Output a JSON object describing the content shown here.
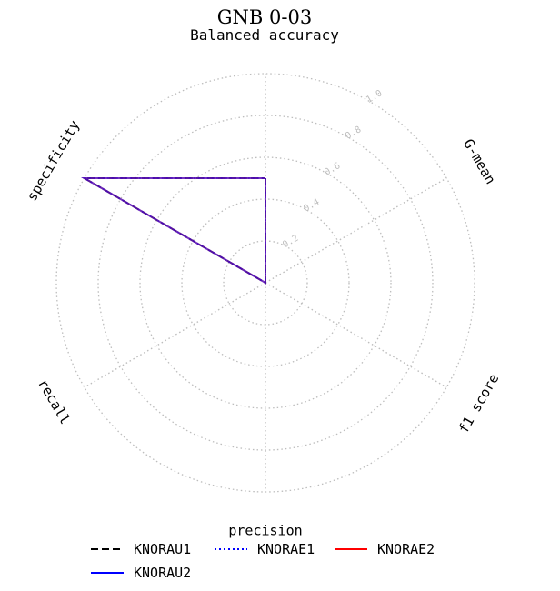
{
  "chart_data": {
    "type": "radar",
    "title": "GNB 0-03",
    "subtitle": "Balanced accuracy",
    "axes": [
      "Balanced accuracy",
      "G-mean",
      "f1 score",
      "precision",
      "recall",
      "specificity"
    ],
    "radial_ticks": [
      "0.2",
      "0.4",
      "0.6",
      "0.8",
      "1.0"
    ],
    "rlim": [
      0,
      1
    ],
    "grid": true,
    "legend_position": "bottom",
    "series": [
      {
        "name": "KNORAU1",
        "color": "#000000",
        "style": "dashed",
        "values": [
          0.5,
          0.0,
          0.0,
          0.0,
          0.0,
          1.0
        ]
      },
      {
        "name": "KNORAE1",
        "color": "#0000ff",
        "style": "dotted",
        "values": [
          0.5,
          0.0,
          0.0,
          0.0,
          0.0,
          1.0
        ]
      },
      {
        "name": "KNORAE2",
        "color": "#ff0000",
        "style": "solid",
        "values": [
          0.5,
          0.0,
          0.0,
          0.0,
          0.0,
          1.0
        ]
      },
      {
        "name": "KNORAU2",
        "color": "#0000ff",
        "style": "solid",
        "values": [
          0.5,
          0.0,
          0.0,
          0.0,
          0.0,
          1.0
        ]
      }
    ]
  }
}
